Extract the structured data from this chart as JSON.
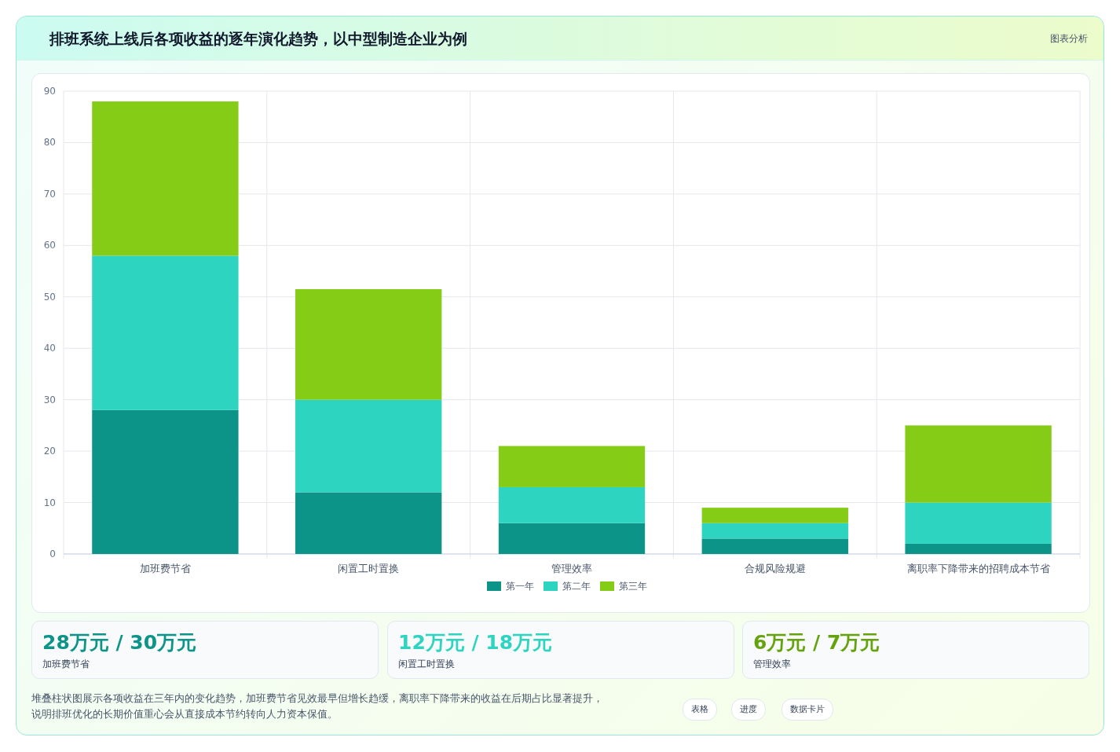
{
  "chart_data": {
    "type": "bar",
    "stacked": true,
    "title": "排班系统上线后各项收益的逐年演化趋势，以中型制造企业为例",
    "categories": [
      "加班费节省",
      "闲置工时置换",
      "管理效率",
      "合规风险规避",
      "离职率下降带来的招聘成本节省"
    ],
    "series": [
      {
        "name": "第一年",
        "color": "#0d9488",
        "values": [
          28,
          12,
          6,
          3,
          2
        ]
      },
      {
        "name": "第二年",
        "color": "#2dd4bf",
        "values": [
          30,
          18,
          7,
          3,
          8
        ]
      },
      {
        "name": "第三年",
        "color": "#84cc16",
        "values": [
          30,
          21.5,
          8,
          3,
          15
        ]
      }
    ],
    "ylim": [
      0,
      90
    ],
    "yticks": [
      0,
      10,
      20,
      30,
      40,
      50,
      60,
      70,
      80,
      90
    ],
    "grid": true,
    "legend": "bottom",
    "annotations": [
      "图表分析",
      "28万元 / 30万元",
      "加班费节省",
      "12万元 / 18万元",
      "闲置工时置换",
      "6万元 / 7万元",
      "管理效率",
      "堆叠柱状图展示各项收益在三年内的变化趋势，加班费节省见效最早但增长趋缓，离职率下降带来的收益在后期占比显著提升，说明排班优化的长期价值重心会从直接成本节约转向人力资本保值。",
      "表格",
      "进度",
      "数据卡片"
    ]
  }
}
